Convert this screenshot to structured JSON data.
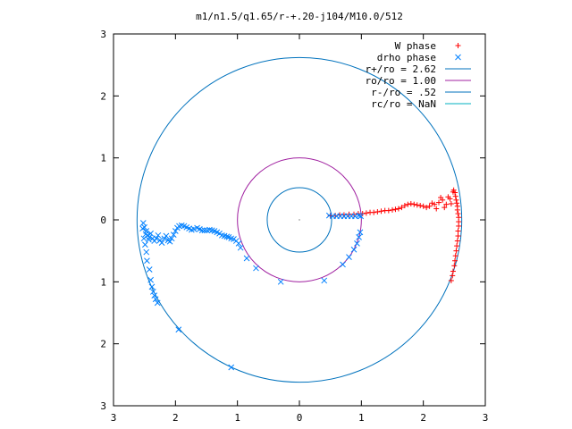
{
  "chart_data": {
    "type": "scatter",
    "title": "m1/n1.5/q1.65/r-+.20-j104/M10.0/512",
    "xlabel": "",
    "ylabel": "",
    "xlim": [
      -3,
      3
    ],
    "ylim": [
      -3,
      3
    ],
    "x_ticks": [
      -3,
      -2,
      -1,
      0,
      1,
      2,
      3
    ],
    "y_ticks": [
      -3,
      -2,
      -1,
      0,
      1,
      2,
      3
    ],
    "x_tick_labels": [
      "3",
      "2",
      "1",
      "0",
      "1",
      "2",
      "3"
    ],
    "y_tick_labels": [
      "3",
      "2",
      "1",
      "0",
      "1",
      "2",
      "3"
    ],
    "grid": false,
    "legend_position": "top-right",
    "series": [
      {
        "name": "W phase",
        "kind": "points",
        "marker": "plus",
        "color": "#ff0000",
        "points": [
          [
            0.5,
            0.07
          ],
          [
            0.58,
            0.07
          ],
          [
            0.65,
            0.08
          ],
          [
            0.72,
            0.08
          ],
          [
            0.8,
            0.09
          ],
          [
            0.88,
            0.09
          ],
          [
            0.95,
            0.1
          ],
          [
            1.02,
            0.1
          ],
          [
            1.08,
            0.11
          ],
          [
            1.14,
            0.12
          ],
          [
            1.2,
            0.12
          ],
          [
            1.26,
            0.13
          ],
          [
            1.32,
            0.14
          ],
          [
            1.38,
            0.15
          ],
          [
            1.44,
            0.15
          ],
          [
            1.5,
            0.16
          ],
          [
            1.55,
            0.17
          ],
          [
            1.6,
            0.18
          ],
          [
            1.65,
            0.2
          ],
          [
            1.7,
            0.23
          ],
          [
            1.75,
            0.25
          ],
          [
            1.8,
            0.26
          ],
          [
            1.85,
            0.25
          ],
          [
            1.9,
            0.24
          ],
          [
            1.95,
            0.23
          ],
          [
            2.0,
            0.22
          ],
          [
            2.05,
            0.2
          ],
          [
            2.1,
            0.22
          ],
          [
            2.14,
            0.27
          ],
          [
            2.18,
            0.25
          ],
          [
            2.21,
            0.18
          ],
          [
            2.25,
            0.28
          ],
          [
            2.28,
            0.36
          ],
          [
            2.31,
            0.32
          ],
          [
            2.34,
            0.2
          ],
          [
            2.37,
            0.25
          ],
          [
            2.4,
            0.37
          ],
          [
            2.43,
            0.34
          ],
          [
            2.45,
            0.26
          ],
          [
            2.48,
            0.45
          ],
          [
            2.49,
            0.48
          ],
          [
            2.51,
            0.44
          ],
          [
            2.52,
            0.38
          ],
          [
            2.53,
            0.32
          ],
          [
            2.54,
            0.27
          ],
          [
            2.55,
            0.22
          ],
          [
            2.55,
            0.16
          ],
          [
            2.56,
            0.1
          ],
          [
            2.57,
            0.04
          ],
          [
            2.57,
            -0.03
          ],
          [
            2.57,
            -0.1
          ],
          [
            2.56,
            -0.18
          ],
          [
            2.56,
            -0.26
          ],
          [
            2.55,
            -0.34
          ],
          [
            2.54,
            -0.42
          ],
          [
            2.53,
            -0.5
          ],
          [
            2.52,
            -0.58
          ],
          [
            2.51,
            -0.66
          ],
          [
            2.5,
            -0.74
          ],
          [
            2.48,
            -0.83
          ],
          [
            2.47,
            -0.9
          ],
          [
            2.45,
            -0.98
          ]
        ]
      },
      {
        "name": "drho phase",
        "kind": "points",
        "marker": "cross",
        "color": "#0080ff",
        "points": [
          [
            0.98,
            -0.2
          ],
          [
            0.96,
            -0.28
          ],
          [
            0.93,
            -0.38
          ],
          [
            0.88,
            -0.48
          ],
          [
            0.8,
            -0.6
          ],
          [
            0.7,
            -0.72
          ],
          [
            0.4,
            -0.98
          ],
          [
            -0.3,
            -1.0
          ],
          [
            -0.7,
            -0.78
          ],
          [
            -0.85,
            -0.62
          ],
          [
            -0.95,
            -0.45
          ],
          [
            -0.98,
            -0.38
          ],
          [
            -1.02,
            -0.34
          ],
          [
            -1.06,
            -0.31
          ],
          [
            -1.1,
            -0.3
          ],
          [
            -1.14,
            -0.28
          ],
          [
            -1.17,
            -0.27
          ],
          [
            -1.21,
            -0.26
          ],
          [
            -1.25,
            -0.25
          ],
          [
            -1.29,
            -0.22
          ],
          [
            -1.33,
            -0.2
          ],
          [
            -1.37,
            -0.18
          ],
          [
            -1.41,
            -0.17
          ],
          [
            -1.45,
            -0.16
          ],
          [
            -1.49,
            -0.17
          ],
          [
            -1.53,
            -0.17
          ],
          [
            -1.57,
            -0.17
          ],
          [
            -1.61,
            -0.15
          ],
          [
            -1.65,
            -0.13
          ],
          [
            -1.7,
            -0.15
          ],
          [
            -1.74,
            -0.16
          ],
          [
            -1.78,
            -0.14
          ],
          [
            -1.82,
            -0.12
          ],
          [
            -1.86,
            -0.1
          ],
          [
            -1.9,
            -0.09
          ],
          [
            -1.94,
            -0.1
          ],
          [
            -1.97,
            -0.13
          ],
          [
            -2.0,
            -0.18
          ],
          [
            -2.03,
            -0.24
          ],
          [
            -2.06,
            -0.3
          ],
          [
            -2.09,
            -0.35
          ],
          [
            -2.12,
            -0.33
          ],
          [
            -2.15,
            -0.26
          ],
          [
            -2.18,
            -0.3
          ],
          [
            -2.22,
            -0.37
          ],
          [
            -2.25,
            -0.33
          ],
          [
            -2.28,
            -0.25
          ],
          [
            -2.31,
            -0.3
          ],
          [
            -2.34,
            -0.34
          ],
          [
            -2.37,
            -0.3
          ],
          [
            -2.4,
            -0.22
          ],
          [
            -2.42,
            -0.28
          ],
          [
            -2.43,
            -0.32
          ],
          [
            -2.45,
            -0.25
          ],
          [
            -2.47,
            -0.18
          ],
          [
            -2.48,
            -0.23
          ],
          [
            -2.5,
            -0.12
          ],
          [
            -2.52,
            -0.05
          ],
          [
            -2.53,
            -0.14
          ],
          [
            -2.51,
            -0.3
          ],
          [
            -2.49,
            -0.4
          ],
          [
            -2.47,
            -0.52
          ],
          [
            -2.46,
            -0.66
          ],
          [
            -2.42,
            -0.8
          ],
          [
            -2.4,
            -0.97
          ],
          [
            -2.38,
            -1.08
          ],
          [
            -2.36,
            -1.16
          ],
          [
            -2.34,
            -1.22
          ],
          [
            -2.32,
            -1.28
          ],
          [
            -2.29,
            -1.34
          ],
          [
            -1.95,
            -1.77
          ],
          [
            -1.1,
            -2.38
          ],
          [
            0.48,
            0.07
          ],
          [
            0.54,
            0.06
          ],
          [
            0.6,
            0.06
          ],
          [
            0.66,
            0.06
          ],
          [
            0.72,
            0.06
          ],
          [
            0.78,
            0.06
          ],
          [
            0.84,
            0.06
          ],
          [
            0.9,
            0.06
          ],
          [
            0.96,
            0.07
          ],
          [
            0.99,
            0.06
          ]
        ]
      },
      {
        "name": "r+/ro = 2.62",
        "kind": "circle",
        "radius": 2.62,
        "color": "#0072bd"
      },
      {
        "name": "ro/ro = 1.00",
        "kind": "circle",
        "radius": 1.0,
        "color": "#a020a0"
      },
      {
        "name": "r-/ro = .52",
        "kind": "circle",
        "radius": 0.52,
        "color": "#0072bd"
      },
      {
        "name": "rc/ro = NaN",
        "kind": "circle",
        "radius": null,
        "color": "#00b0c0"
      }
    ]
  }
}
